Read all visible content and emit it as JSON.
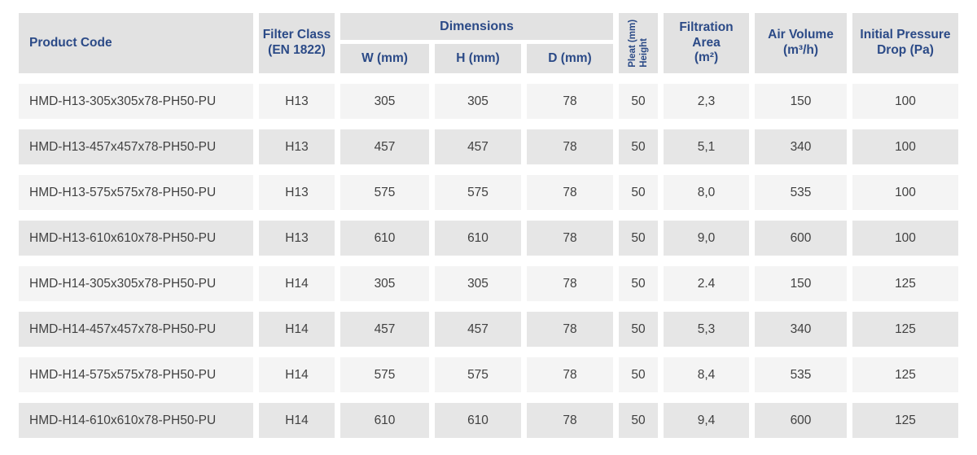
{
  "colors": {
    "accent": "#2b4a87",
    "header_bg": "#e2e2e2",
    "row_odd": "#f4f4f4",
    "row_even": "#e6e6e6",
    "body_text": "#414141"
  },
  "header": {
    "product_code": "Product Code",
    "filter_class_line1": "Filter Class",
    "filter_class_line2": "(EN 1822)",
    "dimensions": "Dimensions",
    "w": "W (mm)",
    "h": "H (mm)",
    "d": "D (mm)",
    "pleat_line1": "Pleat (mm)",
    "pleat_line2": "Height",
    "filtration_line1": "Filtration",
    "filtration_line2": "Area",
    "filtration_line3": "(m²)",
    "air_volume_line1": "Air Volume",
    "air_volume_line2": "(m³/h)",
    "pressure_line1": "Initial Pressure",
    "pressure_line2": "Drop (Pa)"
  },
  "rows": [
    {
      "code": "HMD-H13-305x305x78-PH50-PU",
      "class": "H13",
      "w": "305",
      "h": "305",
      "d": "78",
      "pleat": "50",
      "area": "2,3",
      "volume": "150",
      "drop": "100"
    },
    {
      "code": "HMD-H13-457x457x78-PH50-PU",
      "class": "H13",
      "w": "457",
      "h": "457",
      "d": "78",
      "pleat": "50",
      "area": "5,1",
      "volume": "340",
      "drop": "100"
    },
    {
      "code": "HMD-H13-575x575x78-PH50-PU",
      "class": "H13",
      "w": "575",
      "h": "575",
      "d": "78",
      "pleat": "50",
      "area": "8,0",
      "volume": "535",
      "drop": "100"
    },
    {
      "code": "HMD-H13-610x610x78-PH50-PU",
      "class": "H13",
      "w": "610",
      "h": "610",
      "d": "78",
      "pleat": "50",
      "area": "9,0",
      "volume": "600",
      "drop": "100"
    },
    {
      "code": "HMD-H14-305x305x78-PH50-PU",
      "class": "H14",
      "w": "305",
      "h": "305",
      "d": "78",
      "pleat": "50",
      "area": "2.4",
      "volume": "150",
      "drop": "125"
    },
    {
      "code": "HMD-H14-457x457x78-PH50-PU",
      "class": "H14",
      "w": "457",
      "h": "457",
      "d": "78",
      "pleat": "50",
      "area": "5,3",
      "volume": "340",
      "drop": "125"
    },
    {
      "code": "HMD-H14-575x575x78-PH50-PU",
      "class": "H14",
      "w": "575",
      "h": "575",
      "d": "78",
      "pleat": "50",
      "area": "8,4",
      "volume": "535",
      "drop": "125"
    },
    {
      "code": "HMD-H14-610x610x78-PH50-PU",
      "class": "H14",
      "w": "610",
      "h": "610",
      "d": "78",
      "pleat": "50",
      "area": "9,4",
      "volume": "600",
      "drop": "125"
    }
  ]
}
